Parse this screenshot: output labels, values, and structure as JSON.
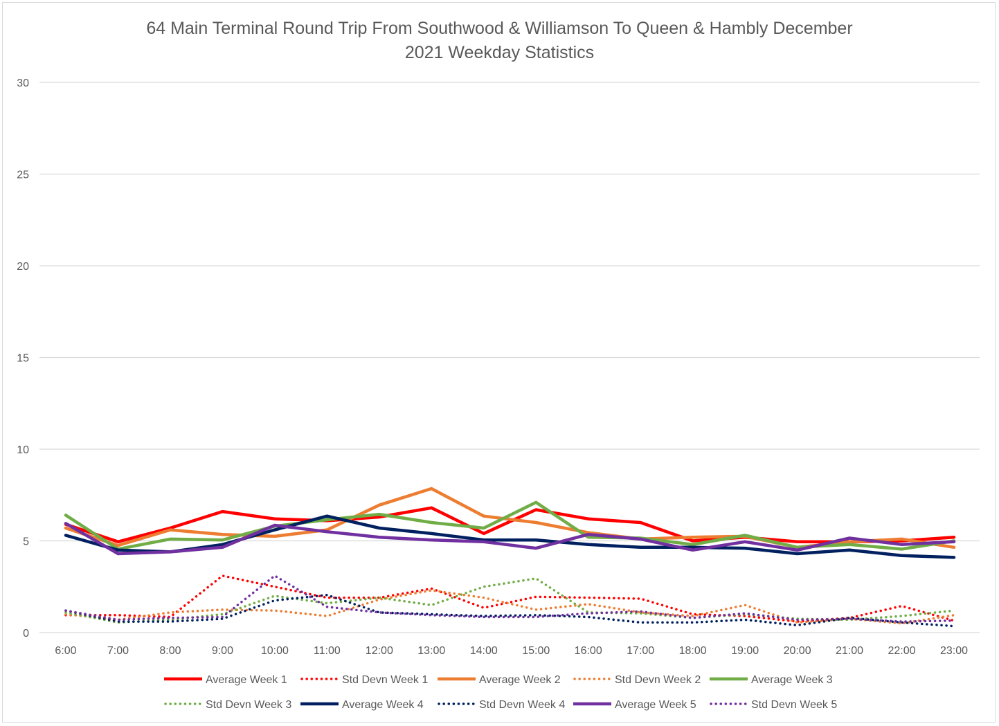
{
  "chart_data": {
    "type": "line",
    "title_line1": "64 Main Terminal Round Trip From Southwood & Williamson To Queen & Hambly December",
    "title_line2": "2021 Weekday Statistics",
    "xlabel": "",
    "ylabel": "",
    "ylim": [
      0,
      30
    ],
    "yticks": [
      "0",
      "5",
      "10",
      "15",
      "20",
      "25",
      "30"
    ],
    "grid": true,
    "legend_position": "bottom",
    "categories": [
      "6:00",
      "7:00",
      "8:00",
      "9:00",
      "10:00",
      "11:00",
      "12:00",
      "13:00",
      "14:00",
      "15:00",
      "16:00",
      "17:00",
      "18:00",
      "19:00",
      "20:00",
      "21:00",
      "22:00",
      "23:00"
    ],
    "series": [
      {
        "name": "Average Week 1",
        "color": "#ff0000",
        "style": "solid",
        "values": [
          5.9,
          4.95,
          5.7,
          6.6,
          6.2,
          6.1,
          6.3,
          6.8,
          5.4,
          6.7,
          6.2,
          6.0,
          5.0,
          5.2,
          4.95,
          4.95,
          5.0,
          5.2
        ]
      },
      {
        "name": "Std Devn Week 1",
        "color": "#ff0000",
        "style": "dotted",
        "values": [
          0.95,
          0.95,
          0.85,
          3.1,
          2.5,
          1.9,
          1.9,
          2.4,
          1.35,
          1.95,
          1.9,
          1.85,
          1.0,
          0.9,
          0.6,
          0.8,
          1.45,
          0.65
        ]
      },
      {
        "name": "Average Week 2",
        "color": "#ed7d31",
        "style": "solid",
        "values": [
          5.7,
          4.75,
          5.6,
          5.35,
          5.25,
          5.6,
          6.95,
          7.85,
          6.35,
          6.0,
          5.45,
          5.1,
          5.2,
          5.25,
          4.65,
          4.95,
          5.1,
          4.65
        ]
      },
      {
        "name": "Std Devn Week 2",
        "color": "#ed7d31",
        "style": "dotted",
        "values": [
          1.0,
          0.7,
          1.1,
          1.25,
          1.2,
          0.9,
          1.8,
          2.3,
          1.9,
          1.25,
          1.55,
          1.1,
          0.9,
          1.5,
          0.55,
          0.75,
          0.5,
          0.95
        ]
      },
      {
        "name": "Average Week 3",
        "color": "#70ad47",
        "style": "solid",
        "values": [
          6.4,
          4.55,
          5.1,
          5.05,
          5.8,
          6.15,
          6.45,
          6.0,
          5.7,
          7.1,
          5.2,
          5.15,
          4.8,
          5.3,
          4.65,
          4.8,
          4.55,
          5.0
        ]
      },
      {
        "name": "Std Devn Week 3",
        "color": "#70ad47",
        "style": "dotted",
        "values": [
          1.1,
          0.55,
          0.7,
          1.0,
          2.0,
          1.6,
          1.9,
          1.5,
          2.5,
          2.95,
          1.1,
          1.05,
          0.8,
          1.0,
          0.75,
          0.7,
          0.9,
          1.2
        ]
      },
      {
        "name": "Average Week 4",
        "color": "#002060",
        "style": "solid",
        "values": [
          5.3,
          4.5,
          4.4,
          4.8,
          5.6,
          6.35,
          5.7,
          5.4,
          5.05,
          5.05,
          4.8,
          4.65,
          4.65,
          4.6,
          4.3,
          4.5,
          4.2,
          4.1
        ]
      },
      {
        "name": "Std Devn Week 4",
        "color": "#002060",
        "style": "dotted",
        "values": [
          1.2,
          0.6,
          0.6,
          0.75,
          1.75,
          2.05,
          1.1,
          1.0,
          0.9,
          0.95,
          0.85,
          0.55,
          0.55,
          0.7,
          0.4,
          0.8,
          0.55,
          0.35
        ]
      },
      {
        "name": "Average Week 5",
        "color": "#7030a0",
        "style": "solid",
        "values": [
          5.95,
          4.3,
          4.4,
          4.65,
          5.85,
          5.5,
          5.2,
          5.05,
          4.95,
          4.6,
          5.35,
          5.1,
          4.5,
          4.95,
          4.5,
          5.15,
          4.8,
          4.95
        ]
      },
      {
        "name": "Std Devn Week 5",
        "color": "#7030a0",
        "style": "dotted",
        "values": [
          1.2,
          0.7,
          0.8,
          0.85,
          3.1,
          1.4,
          1.1,
          0.95,
          0.85,
          0.85,
          1.05,
          1.15,
          0.8,
          1.05,
          0.7,
          0.75,
          0.6,
          0.65
        ]
      }
    ]
  }
}
